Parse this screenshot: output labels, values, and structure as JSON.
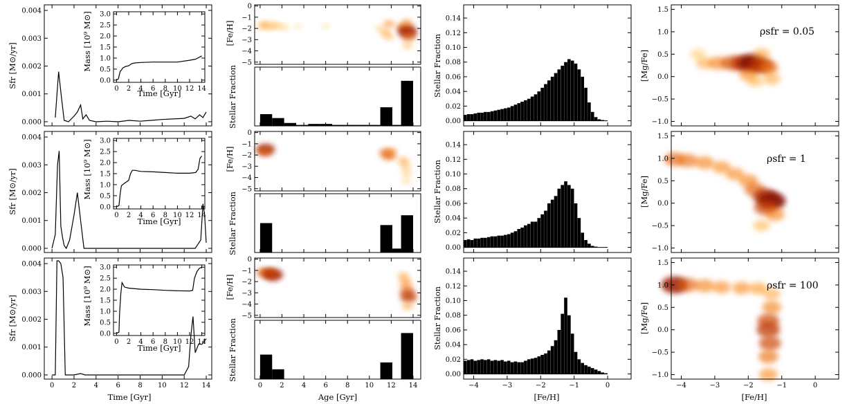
{
  "figure": {
    "labels": {
      "sfr_ylabel": "Sfr [M⊙/yr]",
      "mass_ylabel": "Mass [10⁹ M⊙]",
      "time_xlabel": "Time [Gyr]",
      "feh_ylabel": "[Fe/H]",
      "stellar_fraction_ylabel": "Stellar Fraction",
      "age_xlabel": "Age [Gyr]",
      "feh_xlabel": "[Fe/H]",
      "mgfe_ylabel": "[Mg/Fe]"
    }
  },
  "chart_data": [
    {
      "type": "line",
      "column": "sfr",
      "series": [
        {
          "row": 0,
          "x": [
            0.3,
            0.6,
            0.85,
            1.1,
            1.5,
            2.0,
            2.3,
            2.6,
            2.8,
            3.1,
            3.4,
            4,
            5,
            6,
            7,
            8,
            9,
            10,
            11,
            12,
            12.6,
            13,
            13.4,
            13.7,
            14
          ],
          "y": [
            0.00015,
            0.0018,
            0.0009,
            5e-05,
            0.0,
            0.0002,
            0.00035,
            0.0006,
            0.0001,
            0.00025,
            5e-05,
            0.0,
            2e-05,
            0.0,
            5e-05,
            2e-05,
            5e-05,
            8e-05,
            0.0001,
            0.00012,
            0.0002,
            0.0001,
            0.00025,
            0.00015,
            0.00035
          ]
        },
        {
          "row": 1,
          "x": [
            0.0,
            0.3,
            0.5,
            0.65,
            0.8,
            0.95,
            1.1,
            1.3,
            1.6,
            2.0,
            2.3,
            2.6,
            2.9,
            3.5,
            5,
            7,
            9,
            11,
            13,
            13.5,
            13.7,
            13.85,
            14.0
          ],
          "y": [
            0.0,
            0.0005,
            0.003,
            0.0035,
            0.0008,
            0.0004,
            0.0001,
            0.0,
            0.0003,
            0.0012,
            0.002,
            0.001,
            0.0,
            0.0,
            0.0,
            0.0,
            0.0,
            0.0,
            0.0,
            0.0003,
            0.0016,
            0.0012,
            0.0002
          ]
        },
        {
          "row": 2,
          "x": [
            0.0,
            0.3,
            0.45,
            0.6,
            0.8,
            1.0,
            1.2,
            1.5,
            2.0,
            2.6,
            3.0,
            4,
            6,
            8,
            10,
            12,
            12.4,
            12.6,
            12.8,
            13.0,
            13.3,
            13.6,
            14.0
          ],
          "y": [
            0.0,
            0.0,
            0.0041,
            0.0041,
            0.004,
            0.0035,
            0.0,
            0.0,
            0.0,
            5e-05,
            0.0,
            0.0,
            0.0,
            0.0,
            0.0,
            0.0,
            0.0003,
            0.0014,
            0.0021,
            0.0008,
            0.0011,
            0.0011,
            0.0013
          ]
        }
      ],
      "xlabel": "Time [Gyr]",
      "ylabel": "Sfr [M⊙/yr]",
      "xlim": [
        -0.7,
        14.5
      ],
      "ylim": [
        -0.00015,
        0.0042
      ],
      "xticks": [
        0,
        2,
        4,
        6,
        8,
        10,
        12,
        14
      ],
      "yticks": [
        0.0,
        0.001,
        0.002,
        0.003,
        0.004
      ]
    },
    {
      "type": "line",
      "column": "mass-inset",
      "series": [
        {
          "row": 0,
          "x": [
            0,
            0.3,
            0.6,
            0.8,
            1,
            1.5,
            2,
            2.5,
            3,
            4,
            6,
            8,
            10,
            12,
            13,
            14
          ],
          "y": [
            0,
            0.05,
            0.4,
            0.45,
            0.55,
            0.62,
            0.65,
            0.75,
            0.78,
            0.8,
            0.82,
            0.82,
            0.82,
            0.9,
            0.95,
            1.1
          ]
        },
        {
          "row": 1,
          "x": [
            0,
            0.4,
            0.6,
            0.8,
            1.0,
            1.5,
            2.0,
            2.3,
            2.6,
            3,
            4,
            6,
            8,
            10,
            12,
            13,
            13.4,
            13.7,
            14
          ],
          "y": [
            0,
            0.05,
            0.6,
            0.95,
            1.0,
            1.1,
            1.2,
            1.5,
            1.65,
            1.65,
            1.6,
            1.58,
            1.55,
            1.52,
            1.52,
            1.55,
            1.7,
            2.2,
            2.3
          ]
        },
        {
          "row": 2,
          "x": [
            0,
            0.4,
            0.5,
            0.7,
            0.9,
            1.1,
            1.3,
            2,
            4,
            6,
            8,
            10,
            12,
            12.5,
            12.8,
            13.2,
            13.6,
            14
          ],
          "y": [
            0,
            0.05,
            0.9,
            1.8,
            2.3,
            2.2,
            2.1,
            2.05,
            2.0,
            1.98,
            1.95,
            1.93,
            1.92,
            1.95,
            2.5,
            2.8,
            2.95,
            3.0
          ]
        }
      ],
      "xlabel": "Time [Gyr]",
      "ylabel": "Mass [10⁹ M⊙]",
      "xlim": [
        -0.5,
        14.5
      ],
      "ylim": [
        -0.1,
        3.1
      ],
      "xticks": [
        0,
        2,
        4,
        6,
        8,
        10,
        12,
        14
      ],
      "yticks": [
        0.0,
        0.5,
        1.0,
        1.5,
        2.0,
        2.5,
        3.0
      ]
    },
    {
      "type": "heatmap",
      "column": "age-feh",
      "series": [
        {
          "row": 0,
          "points": [
            [
              0.2,
              -1.8,
              0.25
            ],
            [
              0.5,
              -1.6,
              0.25
            ],
            [
              0.9,
              -1.9,
              0.2
            ],
            [
              1.3,
              -1.7,
              0.2
            ],
            [
              1.7,
              -1.8,
              0.15
            ],
            [
              2.2,
              -1.9,
              0.12
            ],
            [
              3.5,
              -1.8,
              0.05
            ],
            [
              6.0,
              -1.8,
              0.05
            ],
            [
              11.0,
              -2.0,
              0.15
            ],
            [
              11.5,
              -2.4,
              0.3
            ],
            [
              11.8,
              -1.6,
              0.35
            ],
            [
              11.8,
              -2.8,
              0.2
            ],
            [
              12.8,
              -1.9,
              0.15
            ],
            [
              13.3,
              -2.0,
              0.6
            ],
            [
              13.5,
              -2.3,
              0.9
            ],
            [
              13.6,
              -2.7,
              0.5
            ],
            [
              13.5,
              -3.5,
              0.25
            ],
            [
              13.4,
              -1.5,
              0.35
            ]
          ]
        },
        {
          "row": 1,
          "points": [
            [
              0.5,
              -1.5,
              0.85
            ],
            [
              0.4,
              -1.7,
              0.5
            ],
            [
              11.5,
              -1.8,
              0.5
            ],
            [
              11.8,
              -2.1,
              0.5
            ],
            [
              12.0,
              -1.7,
              0.35
            ],
            [
              13.1,
              -2.5,
              0.3
            ],
            [
              13.3,
              -3.0,
              0.25
            ],
            [
              13.4,
              -3.6,
              0.2
            ],
            [
              13.4,
              -4.3,
              0.15
            ]
          ]
        },
        {
          "row": 2,
          "points": [
            [
              0.3,
              -1.2,
              0.55
            ],
            [
              0.7,
              -1.2,
              0.5
            ],
            [
              1.2,
              -1.4,
              0.9
            ],
            [
              1.0,
              -1.3,
              0.6
            ],
            [
              13.1,
              -1.5,
              0.3
            ],
            [
              13.3,
              -2.0,
              0.35
            ],
            [
              13.4,
              -2.5,
              0.4
            ],
            [
              13.5,
              -3.0,
              0.6
            ],
            [
              13.6,
              -3.4,
              0.7
            ],
            [
              13.5,
              -4.2,
              0.3
            ]
          ]
        }
      ],
      "ylabel": "[Fe/H]",
      "xlim": [
        -0.5,
        14.7
      ],
      "ylim": [
        -5.2,
        0.1
      ],
      "yticks": [
        0,
        -1,
        -2,
        -3,
        -4,
        -5
      ]
    },
    {
      "type": "bar",
      "column": "age-fraction",
      "series": [
        {
          "row": 0,
          "bins": [
            [
              0,
              1.1,
              0.12
            ],
            [
              1.1,
              2.2,
              0.08
            ],
            [
              2.2,
              3.3,
              0.03
            ],
            [
              3.3,
              4.4,
              0.01
            ],
            [
              4.4,
              5.5,
              0.02
            ],
            [
              5.5,
              6.6,
              0.02
            ],
            [
              6.6,
              7.7,
              0.01
            ],
            [
              7.7,
              8.8,
              0.01
            ],
            [
              8.8,
              9.9,
              0.01
            ],
            [
              9.9,
              11.0,
              0.01
            ],
            [
              11.0,
              12.1,
              0.19
            ],
            [
              12.1,
              12.9,
              0.01
            ],
            [
              12.9,
              14.0,
              0.46
            ]
          ]
        },
        {
          "row": 1,
          "bins": [
            [
              0,
              1.1,
              0.3
            ],
            [
              11.0,
              12.1,
              0.28
            ],
            [
              12.1,
              12.9,
              0.04
            ],
            [
              12.9,
              14.0,
              0.38
            ]
          ]
        },
        {
          "row": 2,
          "bins": [
            [
              0,
              1.1,
              0.25
            ],
            [
              1.1,
              2.2,
              0.1
            ],
            [
              11.0,
              12.1,
              0.17
            ],
            [
              12.9,
              14.0,
              0.47
            ]
          ]
        }
      ],
      "xlabel": "Age [Gyr]",
      "ylabel": "Stellar Fraction",
      "xlim": [
        -0.5,
        14.7
      ],
      "ylim": [
        0.0,
        0.6
      ],
      "xticks": [
        0,
        2,
        4,
        6,
        8,
        10,
        12,
        14
      ]
    },
    {
      "type": "bar",
      "column": "feh-fraction",
      "bin_start": -4.3,
      "bin_width": 0.1,
      "series": [
        {
          "row": 0,
          "values": [
            0.008,
            0.009,
            0.009,
            0.01,
            0.011,
            0.011,
            0.012,
            0.012,
            0.013,
            0.014,
            0.015,
            0.016,
            0.017,
            0.018,
            0.02,
            0.022,
            0.024,
            0.026,
            0.028,
            0.03,
            0.033,
            0.036,
            0.04,
            0.045,
            0.05,
            0.055,
            0.06,
            0.065,
            0.07,
            0.075,
            0.08,
            0.084,
            0.082,
            0.078,
            0.07,
            0.06,
            0.045,
            0.025,
            0.012,
            0.005,
            0.002,
            0.001,
            0.0
          ]
        },
        {
          "row": 1,
          "values": [
            0.01,
            0.011,
            0.01,
            0.012,
            0.012,
            0.013,
            0.013,
            0.014,
            0.015,
            0.015,
            0.016,
            0.016,
            0.017,
            0.018,
            0.02,
            0.022,
            0.025,
            0.027,
            0.03,
            0.032,
            0.035,
            0.035,
            0.04,
            0.045,
            0.05,
            0.06,
            0.065,
            0.07,
            0.08,
            0.085,
            0.09,
            0.085,
            0.08,
            0.06,
            0.04,
            0.02,
            0.01,
            0.005,
            0.002,
            0.001,
            0.0,
            0.0,
            0.0
          ]
        },
        {
          "row": 2,
          "values": [
            0.018,
            0.019,
            0.02,
            0.018,
            0.019,
            0.02,
            0.019,
            0.02,
            0.018,
            0.019,
            0.018,
            0.019,
            0.017,
            0.018,
            0.016,
            0.017,
            0.016,
            0.016,
            0.018,
            0.02,
            0.021,
            0.022,
            0.024,
            0.026,
            0.028,
            0.032,
            0.038,
            0.046,
            0.06,
            0.082,
            0.104,
            0.08,
            0.055,
            0.03,
            0.02,
            0.015,
            0.012,
            0.01,
            0.008,
            0.006,
            0.004,
            0.002,
            0.001
          ]
        }
      ],
      "xlabel": "[Fe/H]",
      "ylabel": "Stellar Fraction",
      "xlim": [
        -4.3,
        0.7
      ],
      "ylim": [
        -0.007,
        0.158
      ],
      "xticks": [
        -4,
        -3,
        -2,
        -1,
        0
      ],
      "yticks": [
        0.0,
        0.02,
        0.04,
        0.06,
        0.08,
        0.1,
        0.12,
        0.14
      ]
    },
    {
      "type": "heatmap",
      "column": "feh-mgfe",
      "series": [
        {
          "row": 0,
          "annotation": "ρsfr = 0.05",
          "points": [
            [
              -3.3,
              0.3,
              0.25
            ],
            [
              -2.9,
              0.3,
              0.4
            ],
            [
              -2.5,
              0.3,
              0.55
            ],
            [
              -2.2,
              0.3,
              0.7
            ],
            [
              -1.9,
              0.3,
              1.0
            ],
            [
              -1.6,
              0.25,
              0.7
            ],
            [
              -1.4,
              0.2,
              0.45
            ],
            [
              -2.0,
              0.05,
              0.35
            ],
            [
              -1.8,
              -0.1,
              0.2
            ],
            [
              -1.3,
              -0.05,
              0.25
            ],
            [
              -1.6,
              0.5,
              0.25
            ],
            [
              -3.5,
              0.5,
              0.1
            ]
          ]
        },
        {
          "row": 1,
          "annotation": "ρsfr = 1",
          "points": [
            [
              -4.2,
              0.98,
              0.5
            ],
            [
              -3.8,
              0.95,
              0.45
            ],
            [
              -3.3,
              0.9,
              0.4
            ],
            [
              -2.8,
              0.8,
              0.35
            ],
            [
              -2.4,
              0.65,
              0.35
            ],
            [
              -2.0,
              0.5,
              0.4
            ],
            [
              -1.8,
              0.3,
              0.5
            ],
            [
              -1.5,
              0.15,
              0.75
            ],
            [
              -1.3,
              0.05,
              1.0
            ],
            [
              -1.5,
              -0.1,
              0.6
            ],
            [
              -1.2,
              -0.25,
              0.4
            ],
            [
              -1.6,
              -0.5,
              0.2
            ]
          ]
        },
        {
          "row": 2,
          "annotation": "ρsfr = 100",
          "points": [
            [
              -4.2,
              1.0,
              0.9
            ],
            [
              -3.8,
              1.0,
              0.5
            ],
            [
              -3.3,
              0.98,
              0.4
            ],
            [
              -2.8,
              0.95,
              0.35
            ],
            [
              -2.2,
              0.93,
              0.35
            ],
            [
              -1.7,
              0.92,
              0.3
            ],
            [
              -1.3,
              0.8,
              0.25
            ],
            [
              -1.3,
              0.5,
              0.4
            ],
            [
              -1.4,
              0.2,
              0.6
            ],
            [
              -1.4,
              0.0,
              0.7
            ],
            [
              -1.35,
              -0.3,
              0.6
            ],
            [
              -1.4,
              -0.6,
              0.45
            ],
            [
              -1.4,
              -1.0,
              0.35
            ]
          ]
        }
      ],
      "xlabel": "[Fe/H]",
      "ylabel": "[Mg/Fe]",
      "xlim": [
        -4.3,
        0.7
      ],
      "ylim": [
        -1.1,
        1.6
      ],
      "xticks": [
        -4,
        -3,
        -2,
        -1,
        0
      ],
      "yticks": [
        -1.0,
        -0.5,
        0.0,
        0.5,
        1.0,
        1.5
      ]
    }
  ]
}
